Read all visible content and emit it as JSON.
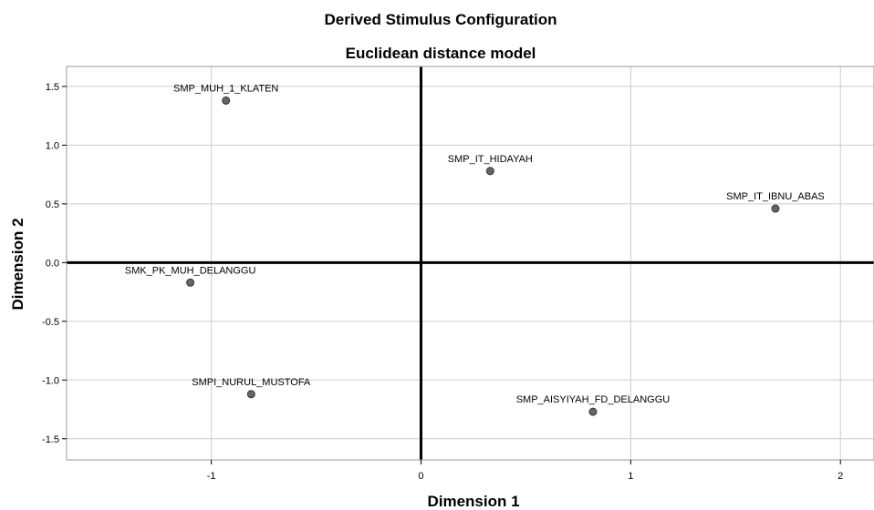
{
  "chart_data": {
    "type": "scatter",
    "title": "Derived Stimulus Configuration",
    "subtitle": "Euclidean distance model",
    "xlabel": "Dimension 1",
    "ylabel": "Dimension 2",
    "xlim": [
      -1.69,
      2.16
    ],
    "ylim": [
      -1.68,
      1.67
    ],
    "xticks": [
      "-1",
      "0",
      "1",
      "2"
    ],
    "yticks": [
      "1.5",
      "1.0",
      "0.5",
      "0.0",
      "-0.5",
      "-1.0",
      "-1.5"
    ],
    "grid": true,
    "points": [
      {
        "label": "SMP_MUH_1_KLATEN",
        "x": -0.93,
        "y": 1.38
      },
      {
        "label": "SMP_IT_HIDAYAH",
        "x": 0.33,
        "y": 0.78
      },
      {
        "label": "SMP_IT_IBNU_ABAS",
        "x": 1.69,
        "y": 0.46
      },
      {
        "label": "SMK_PK_MUH_DELANGGU",
        "x": -1.1,
        "y": -0.17
      },
      {
        "label": "SMPI_NURUL_MUSTOFA",
        "x": -0.81,
        "y": -1.12
      },
      {
        "label": "SMP_AISYIYAH_FD_DELANGGU",
        "x": 0.82,
        "y": -1.27
      }
    ],
    "colors": {
      "point_fill": "#666666",
      "point_stroke": "#333333",
      "grid": "#cccccc",
      "zero_line": "#000000"
    }
  }
}
